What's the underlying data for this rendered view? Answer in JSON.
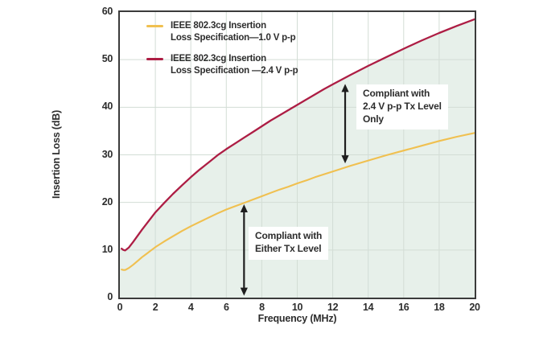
{
  "chart_data": {
    "type": "line",
    "title": "",
    "xlabel": "Frequency (MHz)",
    "ylabel": "Insertion Loss (dB)",
    "xlim": [
      0,
      20
    ],
    "ylim": [
      0,
      60
    ],
    "xticks": [
      0,
      2,
      4,
      6,
      8,
      10,
      12,
      14,
      16,
      18,
      20
    ],
    "yticks": [
      0,
      10,
      20,
      30,
      40,
      50,
      60
    ],
    "grid": true,
    "legend_position": "upper-left-inside",
    "x": [
      0.1,
      0.2,
      0.3,
      0.5,
      0.75,
      1,
      1.25,
      1.5,
      1.75,
      2,
      2.5,
      3,
      3.5,
      4,
      4.5,
      5,
      5.5,
      6,
      6.5,
      7,
      7.5,
      8,
      8.5,
      9,
      9.5,
      10,
      10.5,
      11,
      11.5,
      12,
      13,
      14,
      15,
      16,
      17,
      18,
      19,
      20
    ],
    "series": [
      {
        "name": "IEEE 802.3cg Insertion Loss Specification—1.0 V p-p",
        "color": "#F0C050",
        "values": [
          5.9,
          5.8,
          5.8,
          6.2,
          6.9,
          7.7,
          8.5,
          9.2,
          9.9,
          10.6,
          11.8,
          12.9,
          14.0,
          15.0,
          15.9,
          16.8,
          17.7,
          18.5,
          19.2,
          19.9,
          20.6,
          21.3,
          22.0,
          22.7,
          23.3,
          24.0,
          24.6,
          25.3,
          25.9,
          26.5,
          27.7,
          28.8,
          29.9,
          30.9,
          31.9,
          32.9,
          33.8,
          34.6
        ]
      },
      {
        "name": "IEEE 802.3cg Insertion Loss Specification —2.4 V p-p",
        "color": "#AD1D44",
        "fill_below": "#E7F0EA",
        "values": [
          10.3,
          10.0,
          9.9,
          10.5,
          11.7,
          13.0,
          14.3,
          15.5,
          16.7,
          17.9,
          19.9,
          21.8,
          23.6,
          25.3,
          26.9,
          28.4,
          29.9,
          31.2,
          32.4,
          33.6,
          34.8,
          36.0,
          37.2,
          38.3,
          39.4,
          40.5,
          41.6,
          42.7,
          43.8,
          44.8,
          46.8,
          48.7,
          50.5,
          52.3,
          54.0,
          55.6,
          57.1,
          58.5
        ]
      }
    ],
    "annotations": [
      {
        "lines": [
          "Compliant with",
          "2.4 V p-p Tx Level",
          "Only"
        ],
        "arrow": {
          "x_mhz": 12.7,
          "db_from": 28.2,
          "db_to": 44.9
        }
      },
      {
        "lines": [
          "Compliant with",
          "Either Tx Level"
        ],
        "arrow": {
          "x_mhz": 7.0,
          "db_from": 0.4,
          "db_to": 19.6
        }
      }
    ]
  },
  "legend": {
    "items": [
      {
        "line1": "IEEE 802.3cg Insertion",
        "line2": "Loss Specification—1.0 V p-p",
        "color": "#F0C050"
      },
      {
        "line1": "IEEE 802.3cg Insertion",
        "line2": "Loss Specification —2.4 V p-p",
        "color": "#AD1D44"
      }
    ]
  },
  "colors": {
    "curve_1v": "#F0C050",
    "curve_2v4": "#AD1D44",
    "shade_fill": "#E7F0EA",
    "gridline": "#D3DDD5",
    "frame": "#3B3B3B",
    "text": "#2D2D2D",
    "arrow": "#1E1E1E"
  }
}
